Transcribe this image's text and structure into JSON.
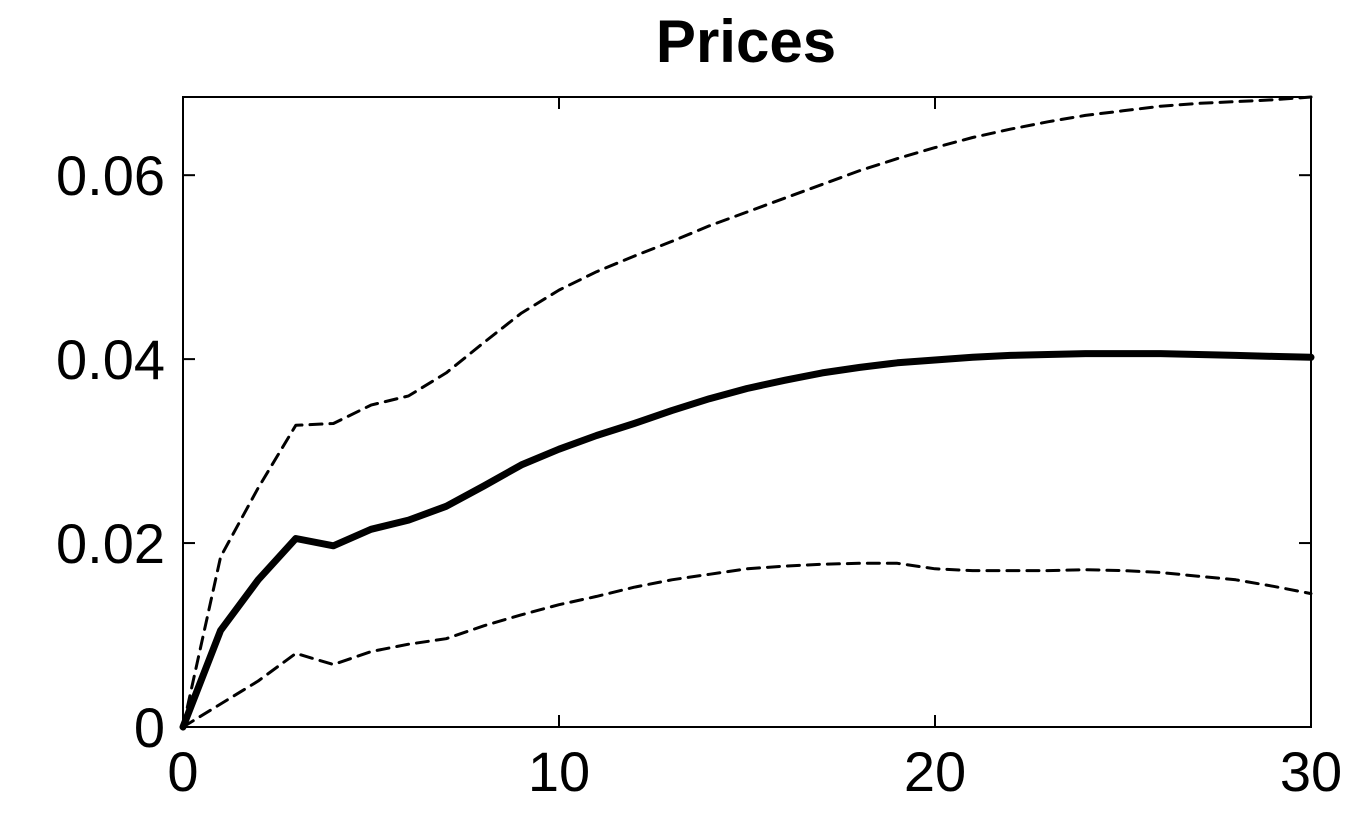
{
  "chart_data": {
    "type": "line",
    "title": "Prices",
    "xlabel": "",
    "ylabel": "",
    "xlim": [
      0,
      30
    ],
    "ylim": [
      0,
      0.0685
    ],
    "xticks": [
      0,
      10,
      20,
      30
    ],
    "xtick_labels": [
      "0",
      "10",
      "20",
      "30"
    ],
    "yticks": [
      0,
      0.02,
      0.04,
      0.06
    ],
    "ytick_labels": [
      "0",
      "0.02",
      "0.04",
      "0.06"
    ],
    "grid": false,
    "legend": "none",
    "x": [
      0,
      1,
      2,
      3,
      4,
      5,
      6,
      7,
      8,
      9,
      10,
      11,
      12,
      13,
      14,
      15,
      16,
      17,
      18,
      19,
      20,
      21,
      22,
      23,
      24,
      25,
      26,
      27,
      28,
      29,
      30
    ],
    "series": [
      {
        "style": "solid",
        "color": "#000000",
        "values": [
          0,
          0.0105,
          0.016,
          0.0205,
          0.0197,
          0.0215,
          0.0225,
          0.024,
          0.0262,
          0.0285,
          0.0302,
          0.0317,
          0.033,
          0.0344,
          0.0357,
          0.0368,
          0.0377,
          0.0385,
          0.0391,
          0.0396,
          0.0399,
          0.0402,
          0.0404,
          0.0405,
          0.0406,
          0.0406,
          0.0406,
          0.0405,
          0.0404,
          0.0403,
          0.0402
        ]
      },
      {
        "style": "dashed",
        "color": "#000000",
        "values": [
          0,
          0.0185,
          0.026,
          0.0328,
          0.033,
          0.035,
          0.036,
          0.0385,
          0.0418,
          0.045,
          0.0475,
          0.0495,
          0.0512,
          0.0528,
          0.0545,
          0.056,
          0.0575,
          0.059,
          0.0605,
          0.0618,
          0.063,
          0.0641,
          0.065,
          0.0658,
          0.0665,
          0.067,
          0.0675,
          0.0678,
          0.068,
          0.0682,
          0.0685
        ]
      },
      {
        "style": "dashed",
        "color": "#000000",
        "values": [
          0,
          0.0025,
          0.005,
          0.008,
          0.0068,
          0.0082,
          0.009,
          0.0096,
          0.011,
          0.0122,
          0.0133,
          0.0142,
          0.0152,
          0.016,
          0.0166,
          0.0172,
          0.0175,
          0.0177,
          0.0178,
          0.0178,
          0.0172,
          0.017,
          0.017,
          0.017,
          0.0171,
          0.017,
          0.0168,
          0.0164,
          0.016,
          0.0153,
          0.0145
        ]
      }
    ]
  }
}
